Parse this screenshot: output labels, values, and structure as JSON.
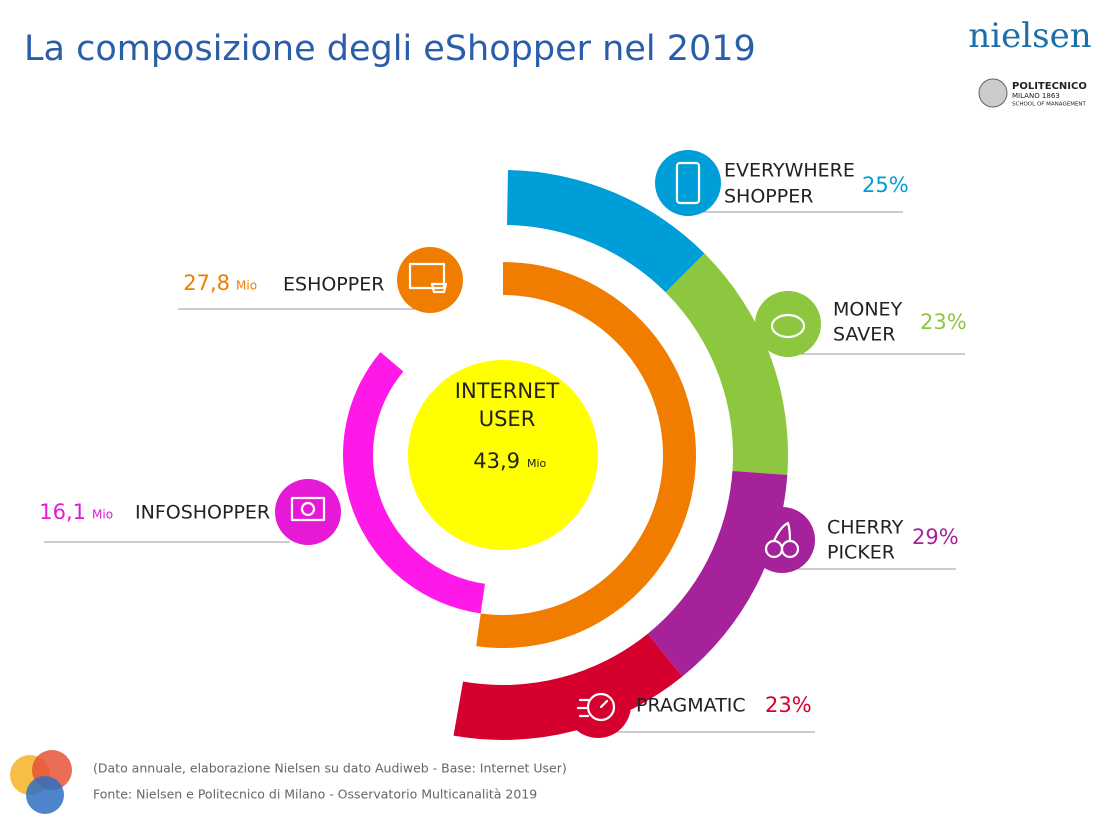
{
  "header": {
    "title": "La composizione degli eShopper nel 2019",
    "logo": "nielsen",
    "partner": {
      "name": "POLITECNICO",
      "line2": "MILANO 1863",
      "line3": "SCHOOL OF MANAGEMENT"
    }
  },
  "center": {
    "label_lines": [
      "INTERNET",
      "USER"
    ],
    "value": "43,9",
    "unit": "Mio"
  },
  "groups": [
    {
      "label": "ESHOPPER",
      "value": "27,8",
      "unit": "Mio"
    },
    {
      "label": "INFOSHOPPER",
      "value": "16,1",
      "unit": "Mio"
    }
  ],
  "segments": [
    {
      "label_lines": [
        "EVERYWHERE",
        "SHOPPER"
      ],
      "share": "25%"
    },
    {
      "label_lines": [
        "MONEY",
        "SAVER"
      ],
      "share": "23%"
    },
    {
      "label_lines": [
        "CHERRY",
        "PICKER"
      ],
      "share": "29%"
    },
    {
      "label_lines": [
        "PRAGMATIC"
      ],
      "share": "23%"
    }
  ],
  "footer": {
    "note": "(Dato annuale, elaborazione Nielsen su dato Audiweb - Base: Internet User)",
    "source": "Fonte: Nielsen e Politecnico di Milano - Osservatorio Multicanalità 2019"
  }
}
